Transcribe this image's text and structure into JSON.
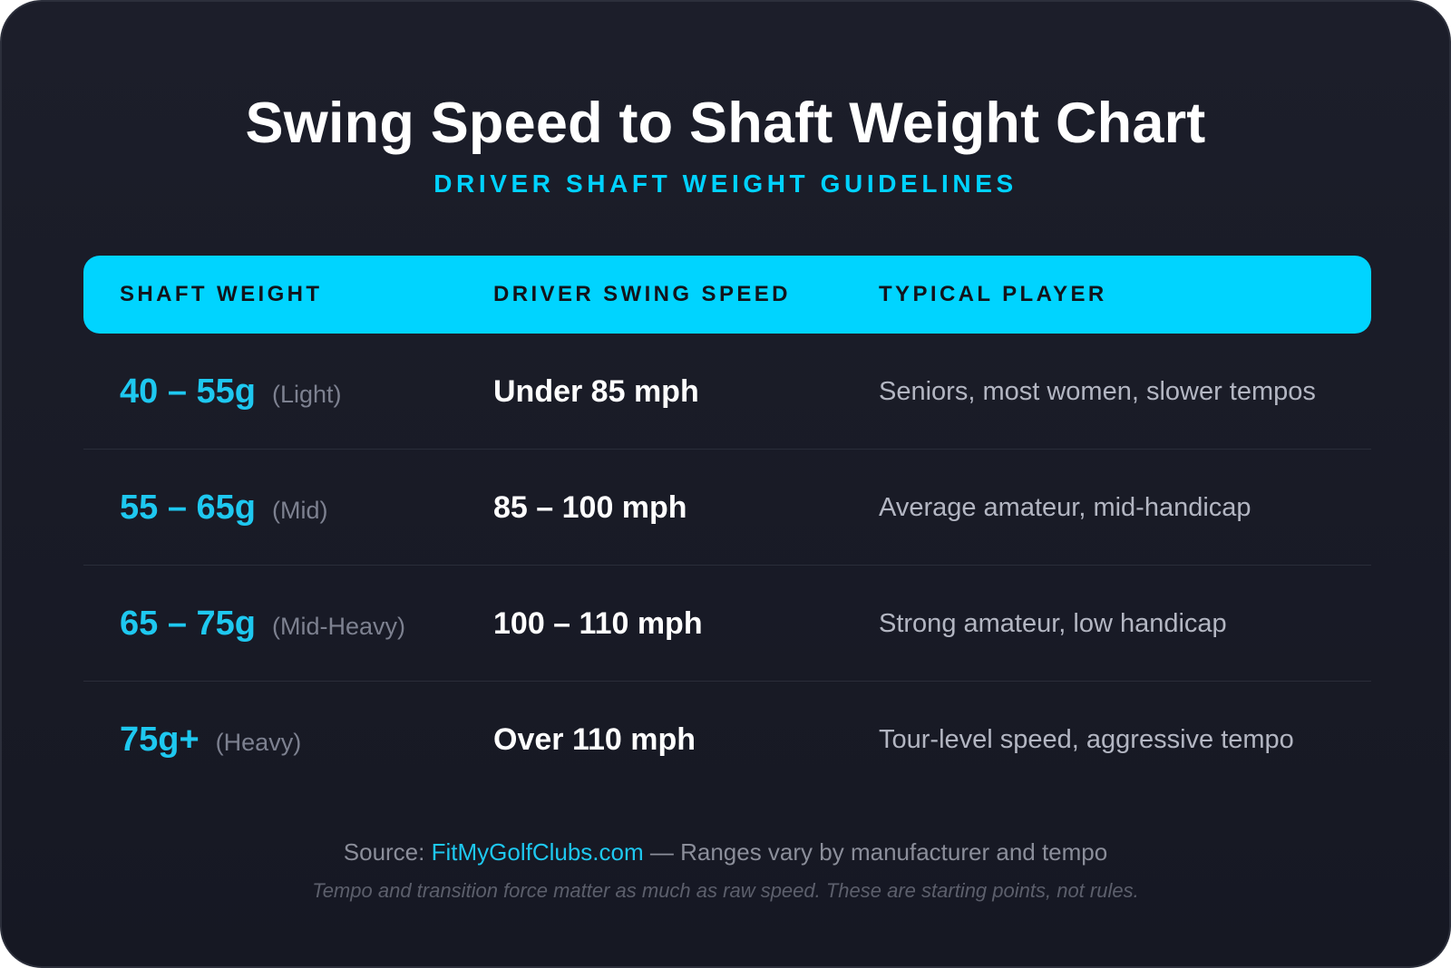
{
  "title": "Swing Speed to Shaft Weight Chart",
  "subtitle": "DRIVER SHAFT WEIGHT GUIDELINES",
  "colors": {
    "accent": "#00d4ff",
    "background": "#1a1c27",
    "weight_text": "#1ec8f0"
  },
  "chart_data": {
    "type": "table",
    "title": "Swing Speed to Shaft Weight Chart",
    "subtitle": "DRIVER SHAFT WEIGHT GUIDELINES",
    "columns": [
      "SHAFT WEIGHT",
      "DRIVER SWING SPEED",
      "TYPICAL PLAYER"
    ],
    "rows": [
      {
        "weight": "40 – 55g",
        "label": "(Light)",
        "speed": "Under 85 mph",
        "player": "Seniors, most women, slower tempos"
      },
      {
        "weight": "55 – 65g",
        "label": "(Mid)",
        "speed": "85 – 100 mph",
        "player": "Average amateur, mid-handicap"
      },
      {
        "weight": "65 – 75g",
        "label": "(Mid-Heavy)",
        "speed": "100 – 110 mph",
        "player": "Strong amateur, low handicap"
      },
      {
        "weight": "75g+",
        "label": "(Heavy)",
        "speed": "Over 110 mph",
        "player": "Tour-level speed, aggressive tempo"
      }
    ]
  },
  "footer": {
    "source_prefix": "Source: ",
    "source_link": "FitMyGolfClubs.com",
    "source_suffix": " — Ranges vary by manufacturer and tempo",
    "note": "Tempo and transition force matter as much as raw speed. These are starting points, not rules."
  }
}
